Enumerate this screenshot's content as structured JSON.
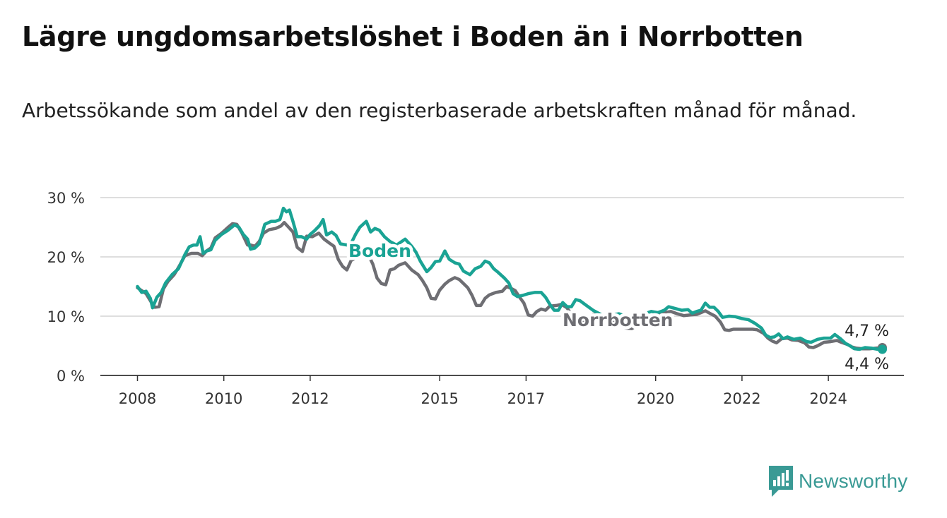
{
  "title": "Lägre ungdomsarbetslöshet i Boden än i Norrbotten",
  "subtitle": "Arbetssökande som andel av den registerbaserade arbetskraften månad för månad.",
  "brand": {
    "name": "Newsworthy",
    "icon": "newsworthy-logo-icon",
    "color": "#3a9a95"
  },
  "chart_data": {
    "type": "line",
    "title": "Lägre ungdomsarbetslöshet i Boden än i Norrbotten",
    "subtitle": "Arbetssökande som andel av den registerbaserade arbetskraften månad för månad.",
    "x_ticks": [
      "2008",
      "2010",
      "2012",
      "2015",
      "2017",
      "2020",
      "2022",
      "2024"
    ],
    "y_ticks": [
      0,
      10,
      20,
      30
    ],
    "y_tick_labels": [
      "0 %",
      "10 %",
      "20 %",
      "30 %"
    ],
    "xlim": [
      2007.6,
      2025.8
    ],
    "ylim": [
      0,
      30
    ],
    "grid": "horizontal",
    "legend": "direct labels on lines",
    "series": [
      {
        "name": "Boden",
        "color": "#1aa394",
        "end_label": "4,4 %",
        "points": [
          [
            2008.0,
            15.0
          ],
          [
            2008.1,
            14.0
          ],
          [
            2008.2,
            14.2
          ],
          [
            2008.3,
            13.0
          ],
          [
            2008.35,
            11.4
          ],
          [
            2008.45,
            13.2
          ],
          [
            2008.55,
            14.0
          ],
          [
            2008.65,
            15.6
          ],
          [
            2008.8,
            17.0
          ],
          [
            2008.95,
            18.0
          ],
          [
            2009.1,
            20.4
          ],
          [
            2009.2,
            21.7
          ],
          [
            2009.3,
            22.0
          ],
          [
            2009.38,
            22.0
          ],
          [
            2009.45,
            23.4
          ],
          [
            2009.52,
            20.6
          ],
          [
            2009.6,
            21.0
          ],
          [
            2009.7,
            21.2
          ],
          [
            2009.8,
            22.8
          ],
          [
            2009.95,
            23.8
          ],
          [
            2010.1,
            24.5
          ],
          [
            2010.25,
            25.4
          ],
          [
            2010.35,
            25.0
          ],
          [
            2010.45,
            23.8
          ],
          [
            2010.55,
            23.0
          ],
          [
            2010.62,
            21.3
          ],
          [
            2010.72,
            21.5
          ],
          [
            2010.82,
            22.2
          ],
          [
            2010.95,
            25.5
          ],
          [
            2011.1,
            26.0
          ],
          [
            2011.2,
            26.0
          ],
          [
            2011.3,
            26.3
          ],
          [
            2011.38,
            28.2
          ],
          [
            2011.45,
            27.6
          ],
          [
            2011.52,
            27.9
          ],
          [
            2011.6,
            26.0
          ],
          [
            2011.7,
            23.4
          ],
          [
            2011.8,
            23.4
          ],
          [
            2011.92,
            23.0
          ],
          [
            2012.0,
            23.8
          ],
          [
            2012.1,
            24.4
          ],
          [
            2012.22,
            25.3
          ],
          [
            2012.3,
            26.3
          ],
          [
            2012.38,
            23.7
          ],
          [
            2012.5,
            24.2
          ],
          [
            2012.6,
            23.6
          ],
          [
            2012.7,
            22.2
          ],
          [
            2012.85,
            22.0
          ],
          [
            2012.95,
            22.3
          ],
          [
            2013.05,
            23.8
          ],
          [
            2013.15,
            25.0
          ],
          [
            2013.3,
            26.0
          ],
          [
            2013.4,
            24.2
          ],
          [
            2013.5,
            24.8
          ],
          [
            2013.6,
            24.5
          ],
          [
            2013.72,
            23.4
          ],
          [
            2013.85,
            22.6
          ],
          [
            2014.0,
            22.0
          ],
          [
            2014.2,
            23.0
          ],
          [
            2014.35,
            21.8
          ],
          [
            2014.45,
            20.8
          ],
          [
            2014.55,
            19.3
          ],
          [
            2014.7,
            17.5
          ],
          [
            2014.8,
            18.2
          ],
          [
            2014.9,
            19.2
          ],
          [
            2015.0,
            19.3
          ],
          [
            2015.12,
            21.0
          ],
          [
            2015.22,
            19.6
          ],
          [
            2015.35,
            19.0
          ],
          [
            2015.45,
            18.8
          ],
          [
            2015.55,
            17.6
          ],
          [
            2015.7,
            17.0
          ],
          [
            2015.82,
            18.0
          ],
          [
            2015.95,
            18.4
          ],
          [
            2016.05,
            19.3
          ],
          [
            2016.15,
            19.0
          ],
          [
            2016.25,
            18.0
          ],
          [
            2016.35,
            17.4
          ],
          [
            2016.5,
            16.4
          ],
          [
            2016.6,
            15.6
          ],
          [
            2016.7,
            13.8
          ],
          [
            2016.8,
            13.3
          ],
          [
            2016.92,
            13.5
          ],
          [
            2017.05,
            13.8
          ],
          [
            2017.2,
            14.0
          ],
          [
            2017.35,
            14.0
          ],
          [
            2017.45,
            13.2
          ],
          [
            2017.55,
            12.0
          ],
          [
            2017.65,
            11.0
          ],
          [
            2017.75,
            11.0
          ],
          [
            2017.85,
            12.3
          ],
          [
            2017.95,
            11.6
          ],
          [
            2018.05,
            11.6
          ],
          [
            2018.15,
            12.8
          ],
          [
            2018.25,
            12.6
          ],
          [
            2018.4,
            11.8
          ],
          [
            2018.55,
            11.0
          ],
          [
            2018.7,
            10.4
          ],
          [
            2018.85,
            9.8
          ],
          [
            2019.0,
            10.2
          ],
          [
            2019.15,
            10.4
          ],
          [
            2019.3,
            10.0
          ],
          [
            2019.45,
            9.6
          ],
          [
            2019.6,
            9.6
          ],
          [
            2019.75,
            10.4
          ],
          [
            2019.9,
            10.8
          ],
          [
            2020.05,
            10.6
          ],
          [
            2020.2,
            11.0
          ],
          [
            2020.3,
            11.6
          ],
          [
            2020.45,
            11.3
          ],
          [
            2020.6,
            11.0
          ],
          [
            2020.75,
            11.1
          ],
          [
            2020.85,
            10.5
          ],
          [
            2020.95,
            10.8
          ],
          [
            2021.05,
            11.0
          ],
          [
            2021.15,
            12.2
          ],
          [
            2021.25,
            11.5
          ],
          [
            2021.35,
            11.5
          ],
          [
            2021.45,
            10.8
          ],
          [
            2021.55,
            9.8
          ],
          [
            2021.7,
            10.0
          ],
          [
            2021.85,
            9.9
          ],
          [
            2022.0,
            9.6
          ],
          [
            2022.15,
            9.4
          ],
          [
            2022.3,
            8.8
          ],
          [
            2022.45,
            8.0
          ],
          [
            2022.55,
            6.8
          ],
          [
            2022.65,
            6.4
          ],
          [
            2022.75,
            6.5
          ],
          [
            2022.85,
            7.0
          ],
          [
            2022.95,
            6.2
          ],
          [
            2023.05,
            6.5
          ],
          [
            2023.2,
            6.1
          ],
          [
            2023.35,
            6.3
          ],
          [
            2023.5,
            5.7
          ],
          [
            2023.6,
            5.6
          ],
          [
            2023.75,
            6.1
          ],
          [
            2023.9,
            6.3
          ],
          [
            2024.05,
            6.3
          ],
          [
            2024.15,
            6.9
          ],
          [
            2024.28,
            6.2
          ],
          [
            2024.4,
            5.4
          ],
          [
            2024.5,
            5.0
          ],
          [
            2024.6,
            4.5
          ],
          [
            2024.72,
            4.4
          ],
          [
            2024.85,
            4.7
          ],
          [
            2025.0,
            4.6
          ],
          [
            2025.15,
            4.4
          ],
          [
            2025.25,
            4.4
          ]
        ]
      },
      {
        "name": "Norrbotten",
        "color": "#6e6e73",
        "end_label": "4,7 %",
        "points": [
          [
            2008.0,
            14.8
          ],
          [
            2008.1,
            14.3
          ],
          [
            2008.2,
            13.8
          ],
          [
            2008.3,
            12.6
          ],
          [
            2008.4,
            11.5
          ],
          [
            2008.5,
            11.6
          ],
          [
            2008.6,
            14.6
          ],
          [
            2008.7,
            15.8
          ],
          [
            2008.85,
            17.0
          ],
          [
            2008.95,
            18.2
          ],
          [
            2009.1,
            20.2
          ],
          [
            2009.25,
            20.6
          ],
          [
            2009.4,
            20.6
          ],
          [
            2009.5,
            20.2
          ],
          [
            2009.6,
            21.0
          ],
          [
            2009.7,
            21.5
          ],
          [
            2009.8,
            23.2
          ],
          [
            2009.95,
            24.0
          ],
          [
            2010.1,
            25.0
          ],
          [
            2010.2,
            25.6
          ],
          [
            2010.3,
            25.5
          ],
          [
            2010.42,
            24.0
          ],
          [
            2010.55,
            22.0
          ],
          [
            2010.62,
            22.0
          ],
          [
            2010.72,
            21.8
          ],
          [
            2010.82,
            22.6
          ],
          [
            2010.92,
            24.0
          ],
          [
            2011.05,
            24.6
          ],
          [
            2011.2,
            24.8
          ],
          [
            2011.32,
            25.2
          ],
          [
            2011.4,
            25.8
          ],
          [
            2011.5,
            25.0
          ],
          [
            2011.6,
            24.2
          ],
          [
            2011.7,
            21.6
          ],
          [
            2011.82,
            20.9
          ],
          [
            2011.92,
            23.5
          ],
          [
            2012.05,
            23.4
          ],
          [
            2012.2,
            24.0
          ],
          [
            2012.32,
            23.0
          ],
          [
            2012.45,
            22.3
          ],
          [
            2012.55,
            21.8
          ],
          [
            2012.65,
            19.6
          ],
          [
            2012.75,
            18.4
          ],
          [
            2012.85,
            17.8
          ],
          [
            2012.95,
            19.4
          ],
          [
            2013.1,
            20.0
          ],
          [
            2013.22,
            20.5
          ],
          [
            2013.35,
            20.3
          ],
          [
            2013.45,
            18.8
          ],
          [
            2013.55,
            16.4
          ],
          [
            2013.65,
            15.5
          ],
          [
            2013.75,
            15.3
          ],
          [
            2013.85,
            17.8
          ],
          [
            2013.95,
            18.0
          ],
          [
            2014.05,
            18.6
          ],
          [
            2014.2,
            19.0
          ],
          [
            2014.35,
            17.8
          ],
          [
            2014.5,
            17.0
          ],
          [
            2014.6,
            16.0
          ],
          [
            2014.7,
            14.8
          ],
          [
            2014.8,
            13.0
          ],
          [
            2014.9,
            12.9
          ],
          [
            2015.0,
            14.4
          ],
          [
            2015.12,
            15.4
          ],
          [
            2015.22,
            16.0
          ],
          [
            2015.35,
            16.5
          ],
          [
            2015.45,
            16.2
          ],
          [
            2015.55,
            15.5
          ],
          [
            2015.65,
            14.8
          ],
          [
            2015.75,
            13.5
          ],
          [
            2015.85,
            11.8
          ],
          [
            2015.95,
            11.8
          ],
          [
            2016.05,
            13.0
          ],
          [
            2016.15,
            13.6
          ],
          [
            2016.3,
            14.0
          ],
          [
            2016.45,
            14.2
          ],
          [
            2016.55,
            15.0
          ],
          [
            2016.65,
            14.7
          ],
          [
            2016.75,
            14.3
          ],
          [
            2016.85,
            13.2
          ],
          [
            2016.95,
            12.2
          ],
          [
            2017.05,
            10.2
          ],
          [
            2017.15,
            10.0
          ],
          [
            2017.25,
            10.8
          ],
          [
            2017.35,
            11.2
          ],
          [
            2017.45,
            11.0
          ],
          [
            2017.55,
            11.7
          ],
          [
            2017.7,
            11.8
          ],
          [
            2017.82,
            12.0
          ],
          [
            2017.95,
            11.4
          ],
          [
            2018.05,
            10.2
          ],
          [
            2018.15,
            8.7
          ],
          [
            2018.25,
            8.6
          ],
          [
            2018.4,
            9.5
          ],
          [
            2018.55,
            10.3
          ],
          [
            2018.7,
            10.2
          ],
          [
            2018.85,
            10.0
          ],
          [
            2019.0,
            9.2
          ],
          [
            2019.15,
            9.0
          ],
          [
            2019.3,
            8.0
          ],
          [
            2019.45,
            7.9
          ],
          [
            2019.6,
            8.6
          ],
          [
            2019.75,
            9.4
          ],
          [
            2019.9,
            10.0
          ],
          [
            2020.05,
            10.4
          ],
          [
            2020.2,
            10.6
          ],
          [
            2020.35,
            10.8
          ],
          [
            2020.5,
            10.4
          ],
          [
            2020.65,
            10.1
          ],
          [
            2020.8,
            10.2
          ],
          [
            2020.95,
            10.3
          ],
          [
            2021.05,
            10.6
          ],
          [
            2021.15,
            10.9
          ],
          [
            2021.25,
            10.5
          ],
          [
            2021.38,
            10.0
          ],
          [
            2021.5,
            9.0
          ],
          [
            2021.6,
            7.7
          ],
          [
            2021.7,
            7.6
          ],
          [
            2021.8,
            7.8
          ],
          [
            2021.95,
            7.8
          ],
          [
            2022.1,
            7.8
          ],
          [
            2022.25,
            7.8
          ],
          [
            2022.35,
            7.7
          ],
          [
            2022.5,
            7.1
          ],
          [
            2022.6,
            6.3
          ],
          [
            2022.7,
            5.8
          ],
          [
            2022.8,
            5.5
          ],
          [
            2022.92,
            6.2
          ],
          [
            2023.05,
            6.3
          ],
          [
            2023.15,
            6.0
          ],
          [
            2023.3,
            5.9
          ],
          [
            2023.45,
            5.5
          ],
          [
            2023.55,
            4.8
          ],
          [
            2023.65,
            4.7
          ],
          [
            2023.75,
            5.0
          ],
          [
            2023.9,
            5.6
          ],
          [
            2024.05,
            5.7
          ],
          [
            2024.2,
            5.9
          ],
          [
            2024.3,
            5.6
          ],
          [
            2024.45,
            5.2
          ],
          [
            2024.55,
            4.8
          ],
          [
            2024.65,
            4.6
          ],
          [
            2024.8,
            4.5
          ],
          [
            2024.95,
            4.5
          ],
          [
            2025.1,
            4.6
          ],
          [
            2025.25,
            4.7
          ]
        ]
      }
    ]
  }
}
